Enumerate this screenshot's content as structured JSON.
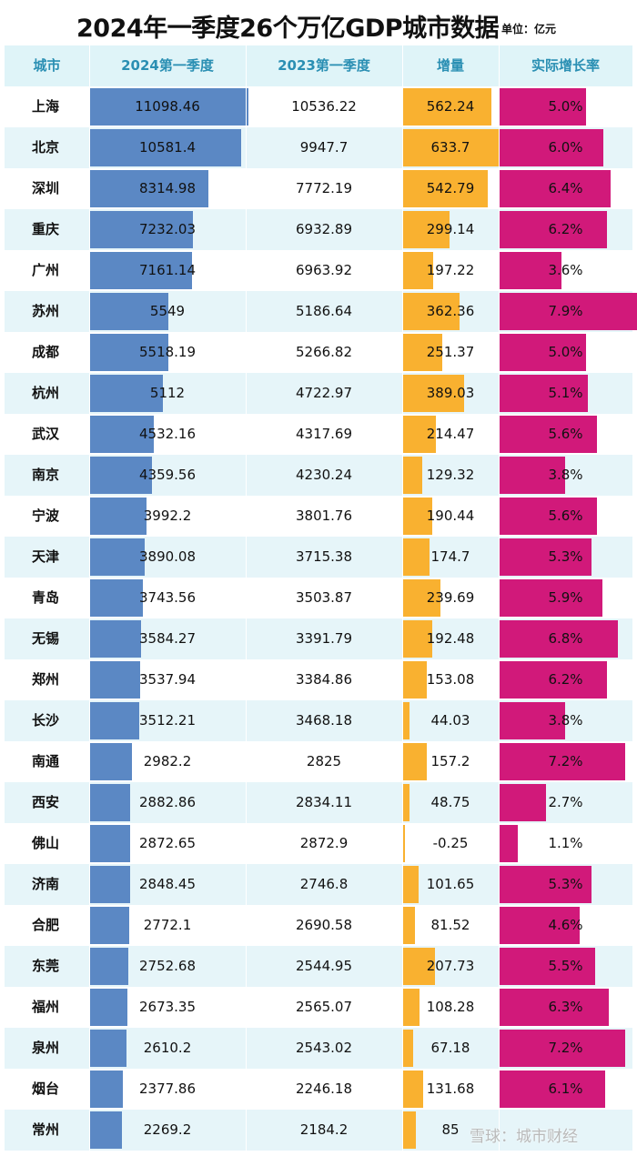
{
  "title": "2024年一季度26个万亿GDP城市数据",
  "unit": "单位：亿元",
  "headers": [
    "城市",
    "2024第一季度",
    "2023第一季度",
    "增量",
    "实际增长率"
  ],
  "watermark": "雪球：城市财经",
  "colors": {
    "gdp2024": "#5b88c4",
    "increase": "#f9b130",
    "growth": "#d1197a",
    "header_text": "#2a8fb3",
    "row_alt": "#e6f5f9"
  },
  "chart_data": {
    "type": "table",
    "columns": [
      "城市",
      "2024第一季度",
      "2023第一季度",
      "增量",
      "实际增长率"
    ],
    "rows": [
      {
        "city": "上海",
        "q1_2024": "11098.46",
        "q1_2023": "10536.22",
        "increase": "562.24",
        "growth": "5.0%"
      },
      {
        "city": "北京",
        "q1_2024": "10581.4",
        "q1_2023": "9947.7",
        "increase": "633.7",
        "growth": "6.0%"
      },
      {
        "city": "深圳",
        "q1_2024": "8314.98",
        "q1_2023": "7772.19",
        "increase": "542.79",
        "growth": "6.4%"
      },
      {
        "city": "重庆",
        "q1_2024": "7232.03",
        "q1_2023": "6932.89",
        "increase": "299.14",
        "growth": "6.2%"
      },
      {
        "city": "广州",
        "q1_2024": "7161.14",
        "q1_2023": "6963.92",
        "increase": "197.22",
        "growth": "3.6%"
      },
      {
        "city": "苏州",
        "q1_2024": "5549",
        "q1_2023": "5186.64",
        "increase": "362.36",
        "growth": "7.9%"
      },
      {
        "city": "成都",
        "q1_2024": "5518.19",
        "q1_2023": "5266.82",
        "increase": "251.37",
        "growth": "5.0%"
      },
      {
        "city": "杭州",
        "q1_2024": "5112",
        "q1_2023": "4722.97",
        "increase": "389.03",
        "growth": "5.1%"
      },
      {
        "city": "武汉",
        "q1_2024": "4532.16",
        "q1_2023": "4317.69",
        "increase": "214.47",
        "growth": "5.6%"
      },
      {
        "city": "南京",
        "q1_2024": "4359.56",
        "q1_2023": "4230.24",
        "increase": "129.32",
        "growth": "3.8%"
      },
      {
        "city": "宁波",
        "q1_2024": "3992.2",
        "q1_2023": "3801.76",
        "increase": "190.44",
        "growth": "5.6%"
      },
      {
        "city": "天津",
        "q1_2024": "3890.08",
        "q1_2023": "3715.38",
        "increase": "174.7",
        "growth": "5.3%"
      },
      {
        "city": "青岛",
        "q1_2024": "3743.56",
        "q1_2023": "3503.87",
        "increase": "239.69",
        "growth": "5.9%"
      },
      {
        "city": "无锡",
        "q1_2024": "3584.27",
        "q1_2023": "3391.79",
        "increase": "192.48",
        "growth": "6.8%"
      },
      {
        "city": "郑州",
        "q1_2024": "3537.94",
        "q1_2023": "3384.86",
        "increase": "153.08",
        "growth": "6.2%"
      },
      {
        "city": "长沙",
        "q1_2024": "3512.21",
        "q1_2023": "3468.18",
        "increase": "44.03",
        "growth": "3.8%"
      },
      {
        "city": "南通",
        "q1_2024": "2982.2",
        "q1_2023": "2825",
        "increase": "157.2",
        "growth": "7.2%"
      },
      {
        "city": "西安",
        "q1_2024": "2882.86",
        "q1_2023": "2834.11",
        "increase": "48.75",
        "growth": "2.7%"
      },
      {
        "city": "佛山",
        "q1_2024": "2872.65",
        "q1_2023": "2872.9",
        "increase": "-0.25",
        "growth": "1.1%"
      },
      {
        "city": "济南",
        "q1_2024": "2848.45",
        "q1_2023": "2746.8",
        "increase": "101.65",
        "growth": "5.3%"
      },
      {
        "city": "合肥",
        "q1_2024": "2772.1",
        "q1_2023": "2690.58",
        "increase": "81.52",
        "growth": "4.6%"
      },
      {
        "city": "东莞",
        "q1_2024": "2752.68",
        "q1_2023": "2544.95",
        "increase": "207.73",
        "growth": "5.5%"
      },
      {
        "city": "福州",
        "q1_2024": "2673.35",
        "q1_2023": "2565.07",
        "increase": "108.28",
        "growth": "6.3%"
      },
      {
        "city": "泉州",
        "q1_2024": "2610.2",
        "q1_2023": "2543.02",
        "increase": "67.18",
        "growth": "7.2%"
      },
      {
        "city": "烟台",
        "q1_2024": "2377.86",
        "q1_2023": "2246.18",
        "increase": "131.68",
        "growth": "6.1%"
      },
      {
        "city": "常州",
        "q1_2024": "2269.2",
        "q1_2023": "2184.2",
        "increase": "85",
        "growth": ""
      }
    ]
  }
}
